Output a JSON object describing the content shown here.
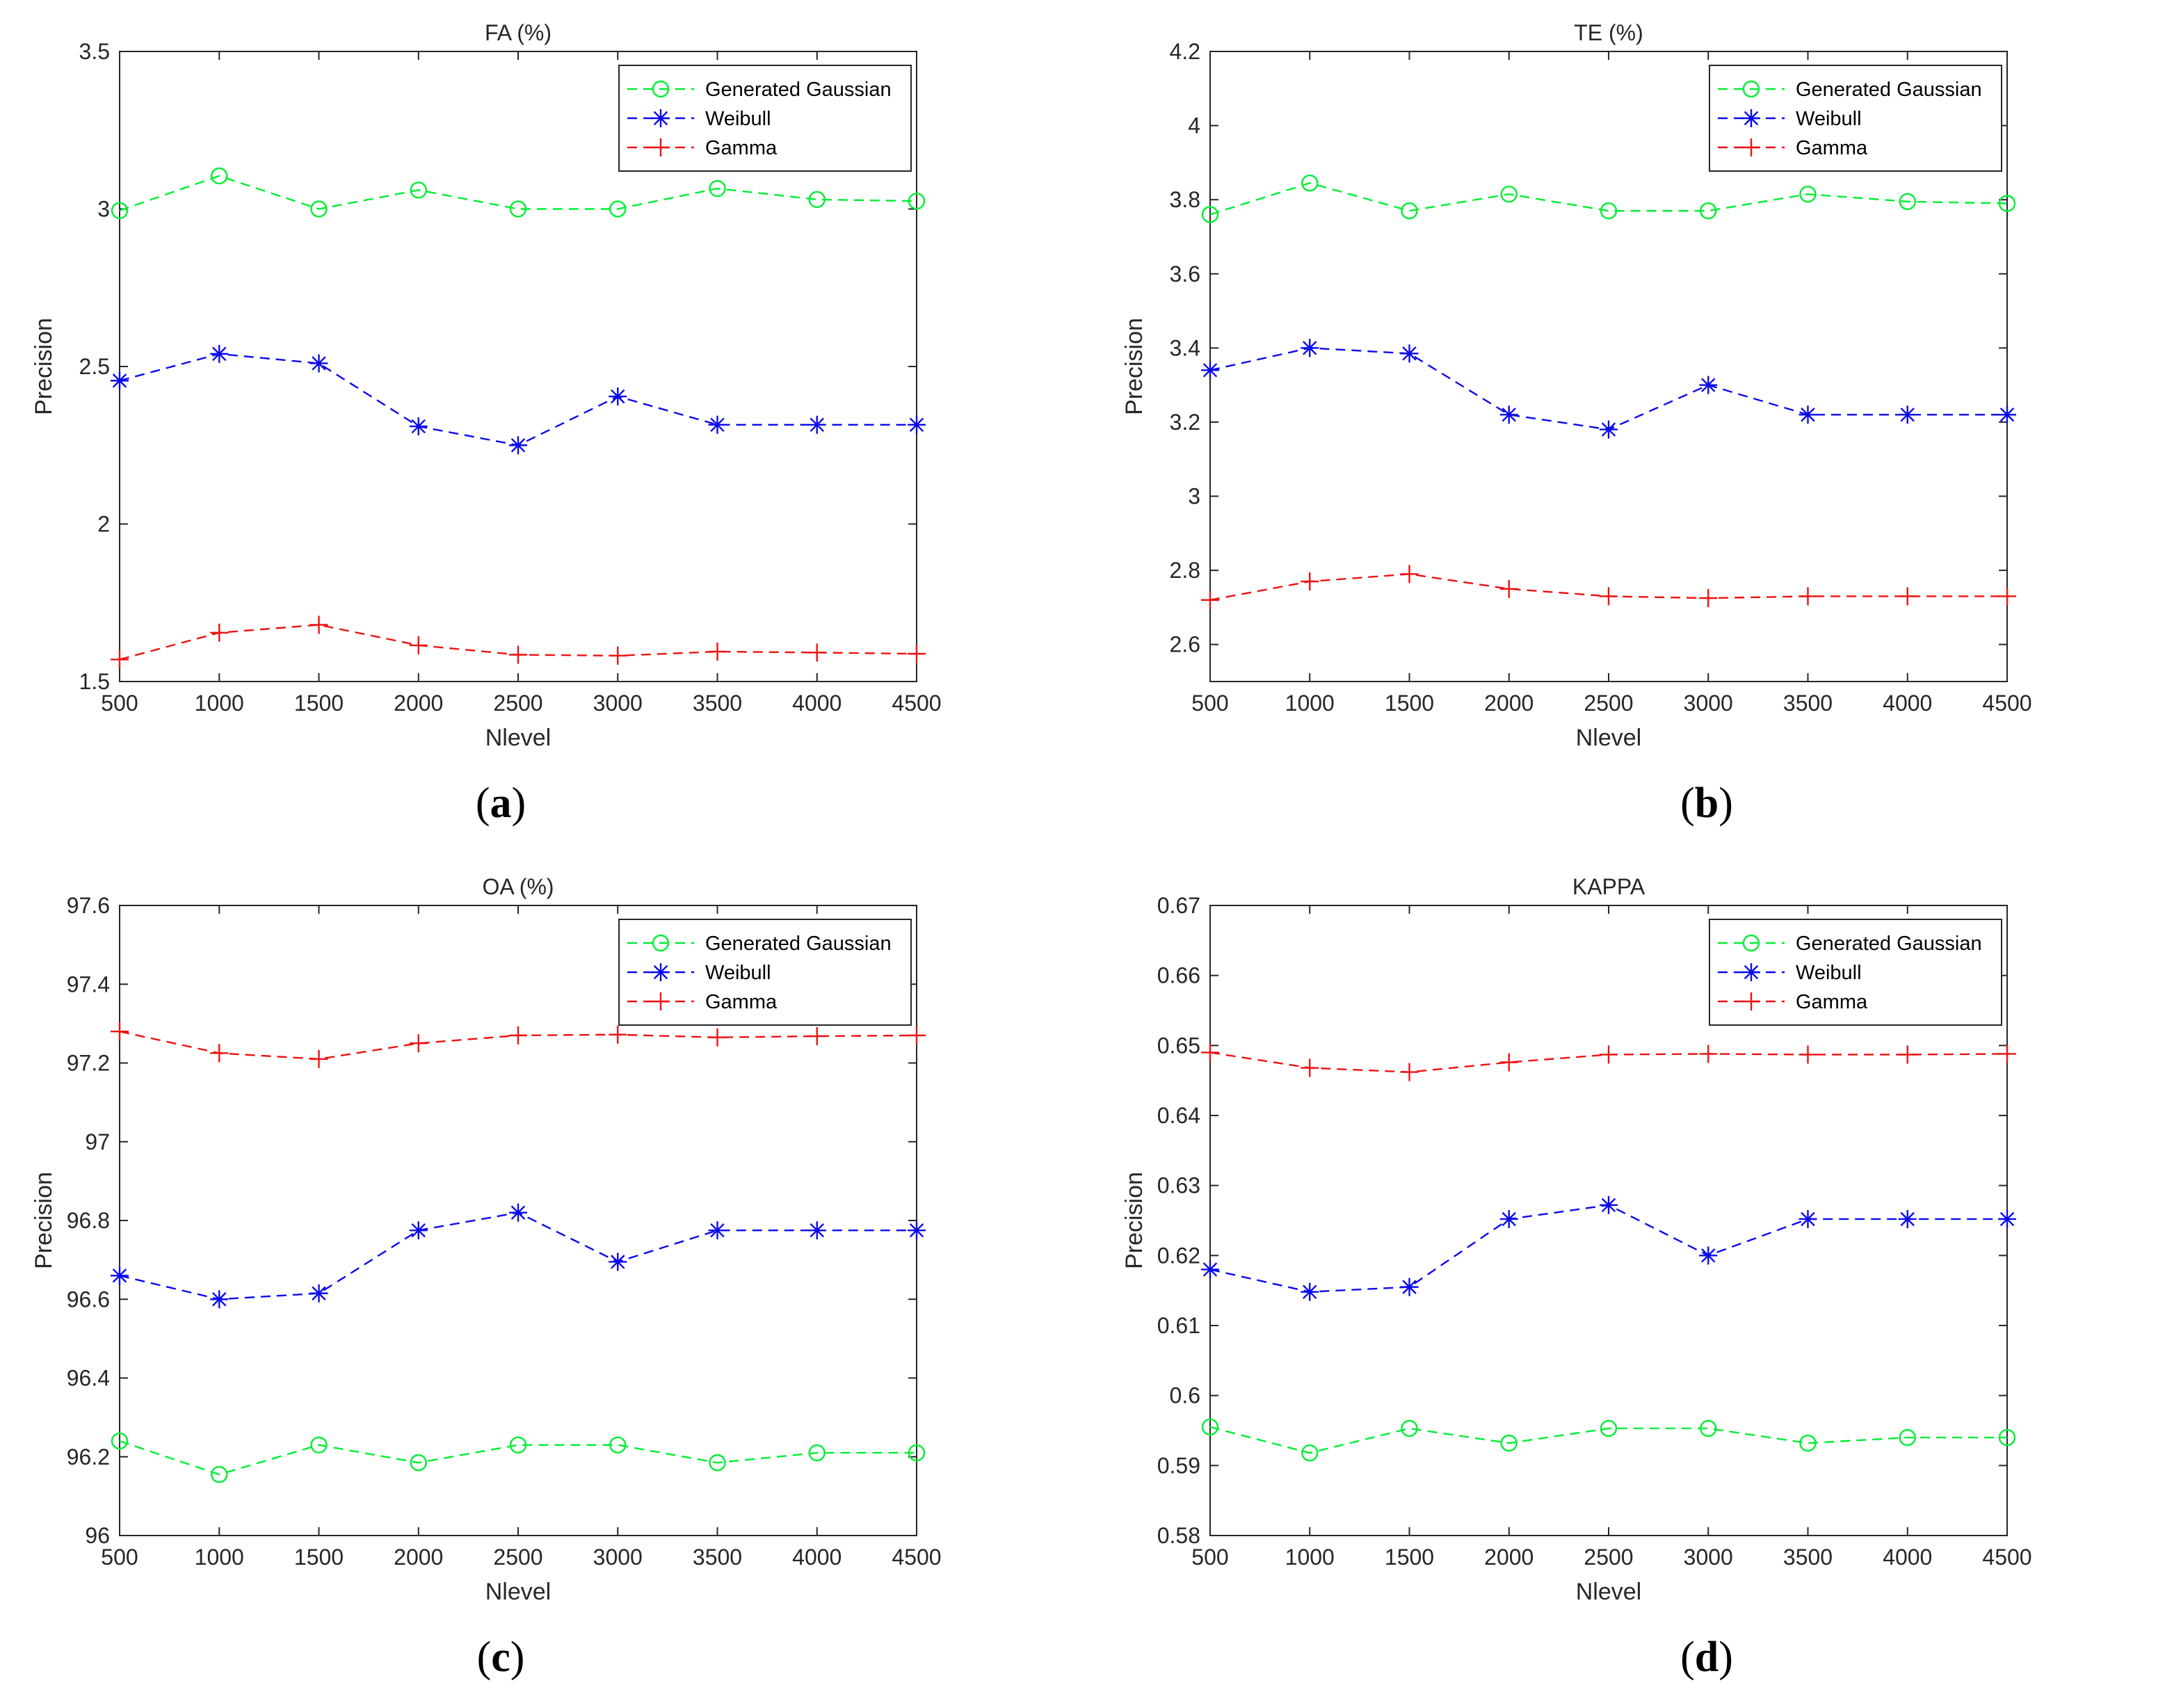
{
  "chart_data": [
    {
      "type": "line",
      "panel": "(a)",
      "caption_letter": "a",
      "title": "FA (%)",
      "xlabel": "Nlevel",
      "ylabel": "Precision",
      "xlim": [
        500,
        4500
      ],
      "ylim": [
        1.5,
        3.5
      ],
      "x": [
        500,
        1000,
        1500,
        2000,
        2500,
        3000,
        3500,
        4000,
        4500
      ],
      "xticks": [
        500,
        1000,
        1500,
        2000,
        2500,
        3000,
        3500,
        4000,
        4500
      ],
      "yticks": [
        1.5,
        2,
        2.5,
        3,
        3.5
      ],
      "ytick_labels": [
        "1.5",
        "2",
        "2.5",
        "3",
        "3.5"
      ],
      "legend_location": "top-right",
      "series": [
        {
          "name": "Generated Gaussian",
          "color": "#00ee33",
          "marker": "circle",
          "values": [
            2.995,
            3.105,
            3.0,
            3.06,
            3.0,
            3.0,
            3.065,
            3.03,
            3.025
          ]
        },
        {
          "name": "Weibull",
          "color": "#0a0aee",
          "marker": "star",
          "values": [
            2.455,
            2.54,
            2.51,
            2.31,
            2.25,
            2.405,
            2.315,
            2.315,
            2.315
          ]
        },
        {
          "name": "Gamma",
          "color": "#ee1111",
          "marker": "plus",
          "values": [
            1.57,
            1.655,
            1.68,
            1.615,
            1.585,
            1.582,
            1.595,
            1.592,
            1.588
          ]
        }
      ]
    },
    {
      "type": "line",
      "panel": "(b)",
      "caption_letter": "b",
      "title": "TE (%)",
      "xlabel": "Nlevel",
      "ylabel": "Precision",
      "xlim": [
        500,
        4500
      ],
      "ylim": [
        2.5,
        4.2
      ],
      "x": [
        500,
        1000,
        1500,
        2000,
        2500,
        3000,
        3500,
        4000,
        4500
      ],
      "xticks": [
        500,
        1000,
        1500,
        2000,
        2500,
        3000,
        3500,
        4000,
        4500
      ],
      "yticks": [
        2.6,
        2.8,
        3,
        3.2,
        3.4,
        3.6,
        3.8,
        4,
        4.2
      ],
      "ytick_labels": [
        "2.6",
        "2.8",
        "3",
        "3.2",
        "3.4",
        "3.6",
        "3.8",
        "4",
        "4.2"
      ],
      "legend_location": "top-right",
      "series": [
        {
          "name": "Generated Gaussian",
          "color": "#00ee33",
          "marker": "circle",
          "values": [
            3.76,
            3.845,
            3.77,
            3.815,
            3.77,
            3.77,
            3.815,
            3.795,
            3.79
          ]
        },
        {
          "name": "Weibull",
          "color": "#0a0aee",
          "marker": "star",
          "values": [
            3.34,
            3.4,
            3.385,
            3.22,
            3.18,
            3.3,
            3.22,
            3.22,
            3.22
          ]
        },
        {
          "name": "Gamma",
          "color": "#ee1111",
          "marker": "plus",
          "values": [
            2.72,
            2.77,
            2.79,
            2.75,
            2.73,
            2.725,
            2.73,
            2.73,
            2.73
          ]
        }
      ]
    },
    {
      "type": "line",
      "panel": "(c)",
      "caption_letter": "c",
      "title": "OA (%)",
      "xlabel": "Nlevel",
      "ylabel": "Precision",
      "xlim": [
        500,
        4500
      ],
      "ylim": [
        96,
        97.6
      ],
      "x": [
        500,
        1000,
        1500,
        2000,
        2500,
        3000,
        3500,
        4000,
        4500
      ],
      "xticks": [
        500,
        1000,
        1500,
        2000,
        2500,
        3000,
        3500,
        4000,
        4500
      ],
      "yticks": [
        96,
        96.2,
        96.4,
        96.6,
        96.8,
        97,
        97.2,
        97.4,
        97.6
      ],
      "ytick_labels": [
        "96",
        "96.2",
        "96.4",
        "96.6",
        "96.8",
        "97",
        "97.2",
        "97.4",
        "97.6"
      ],
      "legend_location": "top-right",
      "series": [
        {
          "name": "Generated Gaussian",
          "color": "#00ee33",
          "marker": "circle",
          "values": [
            96.24,
            96.155,
            96.23,
            96.185,
            96.23,
            96.23,
            96.185,
            96.21,
            96.21
          ]
        },
        {
          "name": "Weibull",
          "color": "#0a0aee",
          "marker": "star",
          "values": [
            96.66,
            96.6,
            96.615,
            96.775,
            96.82,
            96.695,
            96.775,
            96.775,
            96.775
          ]
        },
        {
          "name": "Gamma",
          "color": "#ee1111",
          "marker": "plus",
          "values": [
            97.28,
            97.225,
            97.21,
            97.25,
            97.27,
            97.272,
            97.265,
            97.268,
            97.27
          ]
        }
      ]
    },
    {
      "type": "line",
      "panel": "(d)",
      "caption_letter": "d",
      "title": "KAPPA",
      "xlabel": "Nlevel",
      "ylabel": "Precision",
      "xlim": [
        500,
        4500
      ],
      "ylim": [
        0.58,
        0.67
      ],
      "x": [
        500,
        1000,
        1500,
        2000,
        2500,
        3000,
        3500,
        4000,
        4500
      ],
      "xticks": [
        500,
        1000,
        1500,
        2000,
        2500,
        3000,
        3500,
        4000,
        4500
      ],
      "yticks": [
        0.58,
        0.59,
        0.6,
        0.61,
        0.62,
        0.63,
        0.64,
        0.65,
        0.66,
        0.67
      ],
      "ytick_labels": [
        "0.58",
        "0.59",
        "0.6",
        "0.61",
        "0.62",
        "0.63",
        "0.64",
        "0.65",
        "0.66",
        "0.67"
      ],
      "legend_location": "top-right",
      "series": [
        {
          "name": "Generated Gaussian",
          "color": "#00ee33",
          "marker": "circle",
          "values": [
            0.5955,
            0.5918,
            0.5953,
            0.5932,
            0.5953,
            0.5953,
            0.5932,
            0.594,
            0.594
          ]
        },
        {
          "name": "Weibull",
          "color": "#0a0aee",
          "marker": "star",
          "values": [
            0.618,
            0.6148,
            0.6155,
            0.6252,
            0.6272,
            0.62,
            0.6252,
            0.6252,
            0.6252
          ]
        },
        {
          "name": "Gamma",
          "color": "#ee1111",
          "marker": "plus",
          "values": [
            0.649,
            0.6468,
            0.6462,
            0.6476,
            0.6487,
            0.6488,
            0.6487,
            0.6487,
            0.6488
          ]
        }
      ]
    }
  ]
}
